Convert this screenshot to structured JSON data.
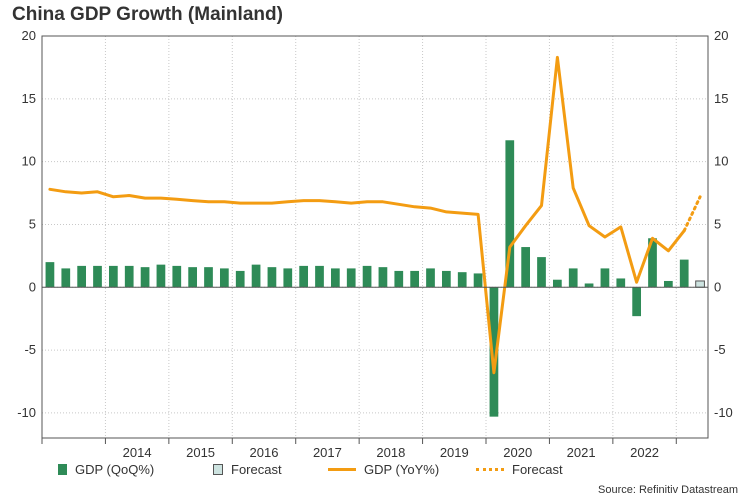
{
  "title": "China GDP Growth (Mainland)",
  "source": "Source: Refinitiv Datastream",
  "colors": {
    "bar": "#2e8b57",
    "forecast_bar": "#cde3e0",
    "line": "#f39c12",
    "grid": "#c8c8c8",
    "axis": "#555555"
  },
  "legend": {
    "bar": "GDP (QoQ%)",
    "bar_forecast": "Forecast",
    "line": "GDP (YoY%)",
    "line_forecast": "Forecast"
  },
  "chart_data": {
    "type": "bar",
    "title": "China GDP Growth (Mainland)",
    "ylim": [
      -12,
      20
    ],
    "y_ticks": [
      -10,
      -5,
      0,
      5,
      10,
      15,
      20
    ],
    "quarters_start": "2013 Q1",
    "year_labels": [
      "2014",
      "2015",
      "2016",
      "2017",
      "2018",
      "2019",
      "2020",
      "2021",
      "2022"
    ],
    "series": [
      {
        "name": "GDP (QoQ%)",
        "type": "bar",
        "values": [
          2.0,
          1.5,
          1.7,
          1.7,
          1.7,
          1.7,
          1.6,
          1.8,
          1.7,
          1.6,
          1.6,
          1.5,
          1.3,
          1.8,
          1.6,
          1.5,
          1.7,
          1.7,
          1.5,
          1.5,
          1.7,
          1.6,
          1.3,
          1.3,
          1.5,
          1.3,
          1.2,
          1.1,
          -10.3,
          11.7,
          3.2,
          2.4,
          0.6,
          1.5,
          0.3,
          1.5,
          0.7,
          -2.3,
          3.9,
          0.5,
          2.2
        ]
      },
      {
        "name": "Forecast",
        "type": "bar",
        "start_index": 41,
        "values": [
          0.5
        ]
      },
      {
        "name": "GDP (YoY%)",
        "type": "line",
        "values": [
          7.8,
          7.6,
          7.5,
          7.6,
          7.2,
          7.3,
          7.1,
          7.1,
          7.0,
          6.9,
          6.8,
          6.8,
          6.7,
          6.7,
          6.7,
          6.8,
          6.9,
          6.9,
          6.8,
          6.7,
          6.8,
          6.8,
          6.6,
          6.4,
          6.3,
          6.0,
          5.9,
          5.8,
          -6.8,
          3.2,
          4.9,
          6.5,
          18.3,
          7.9,
          4.9,
          4.0,
          4.8,
          0.4,
          3.9,
          2.9,
          4.5
        ]
      },
      {
        "name": "Forecast",
        "type": "line",
        "start_index": 40,
        "values": [
          4.5,
          7.2
        ]
      }
    ]
  }
}
